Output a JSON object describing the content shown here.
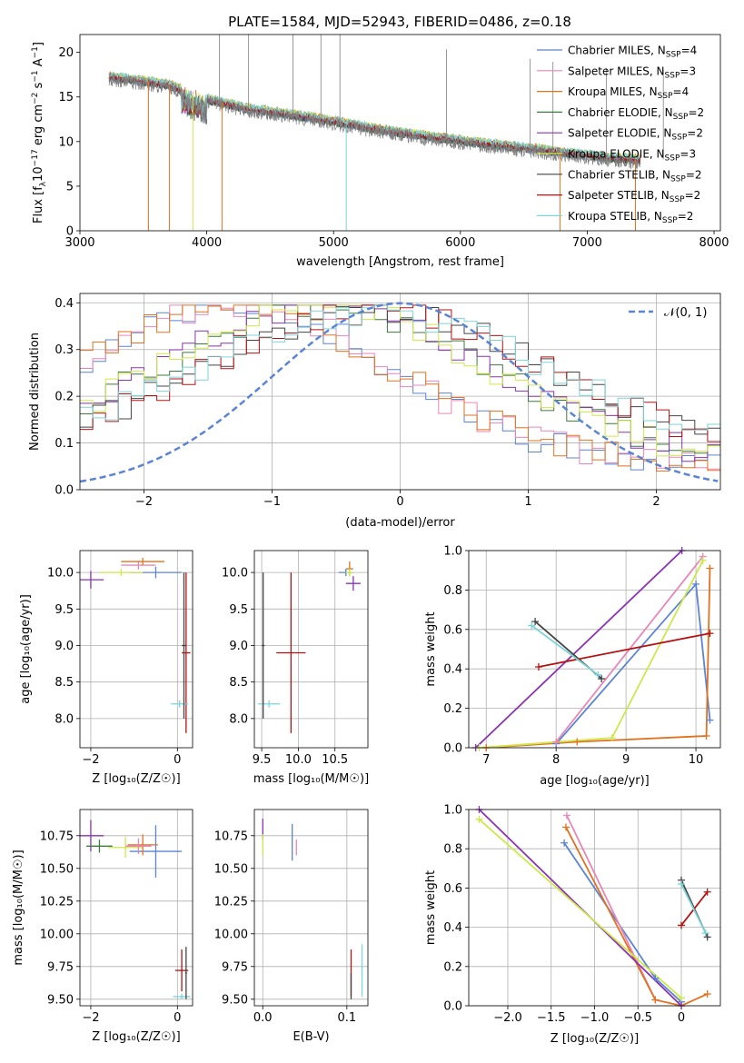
{
  "title": "PLATE=1584, MJD=52943, FIBERID=0486, z=0.18",
  "colors": {
    "chabrier_miles": "#5b84d4",
    "salpeter_miles": "#e986b7",
    "kroupa_miles": "#e0721f",
    "chabrier_elodie": "#3d7a3d",
    "salpeter_elodie": "#8b33b0",
    "kroupa_elodie": "#cde84a",
    "chabrier_stelib": "#444444",
    "salpeter_stelib": "#b31313",
    "kroupa_stelib": "#7dd4d8",
    "data": "#808080"
  },
  "chart_data": [
    {
      "id": "spectrum",
      "type": "line",
      "xlabel": "wavelength [Angstrom, rest frame]",
      "ylabel_parts": [
        "Flux [f",
        "λ",
        "10",
        "−17",
        " erg cm",
        "−2",
        " s",
        "−1",
        " A",
        "−1",
        "]"
      ],
      "xlim": [
        3000,
        8050
      ],
      "ylim": [
        0,
        22
      ],
      "xticks": [
        3000,
        4000,
        5000,
        6000,
        7000,
        8000
      ],
      "yticks": [
        0,
        5,
        10,
        15,
        20
      ],
      "grid": false,
      "legend_position": "top-right",
      "series": [
        {
          "name": "Chabrier MILES, N",
          "sub": "SSP",
          "eq": "=4",
          "color_key": "chabrier_miles"
        },
        {
          "name": "Salpeter MILES, N",
          "sub": "SSP",
          "eq": "=3",
          "color_key": "salpeter_miles"
        },
        {
          "name": "Kroupa MILES, N",
          "sub": "SSP",
          "eq": "=4",
          "color_key": "kroupa_miles"
        },
        {
          "name": "Chabrier ELODIE, N",
          "sub": "SSP",
          "eq": "=2",
          "color_key": "chabrier_elodie"
        },
        {
          "name": "Salpeter ELODIE, N",
          "sub": "SSP",
          "eq": "=2",
          "color_key": "salpeter_elodie"
        },
        {
          "name": "Kroupa ELODIE, N",
          "sub": "SSP",
          "eq": "=3",
          "color_key": "kroupa_elodie"
        },
        {
          "name": "Chabrier STELIB, N",
          "sub": "SSP",
          "eq": "=2",
          "color_key": "chabrier_stelib"
        },
        {
          "name": "Salpeter STELIB, N",
          "sub": "SSP",
          "eq": "=2",
          "color_key": "salpeter_stelib"
        },
        {
          "name": "Kroupa STELIB, N",
          "sub": "SSP",
          "eq": "=2",
          "color_key": "kroupa_stelib"
        }
      ],
      "continuum": {
        "x": [
          3230,
          3500,
          3700,
          4000,
          4300,
          4600,
          5000,
          5400,
          5800,
          6200,
          6600,
          6800,
          7000,
          7200,
          7400
        ],
        "y": [
          17.3,
          16.8,
          16.4,
          14.8,
          13.8,
          13.2,
          12.3,
          11.3,
          10.5,
          9.8,
          9.2,
          8.8,
          8.5,
          8.2,
          8.0
        ]
      },
      "absorption_dips": [
        {
          "x": 3540,
          "color_key": "kroupa_miles"
        },
        {
          "x": 3705,
          "color_key": "kroupa_miles"
        },
        {
          "x": 3890,
          "color_key": "kroupa_elodie"
        },
        {
          "x": 4120,
          "color_key": "kroupa_miles"
        },
        {
          "x": 5100,
          "color_key": "kroupa_stelib"
        },
        {
          "x": 6785,
          "color_key": "kroupa_miles"
        },
        {
          "x": 7380,
          "color_key": "kroupa_miles"
        }
      ],
      "spikes": [
        4100,
        4330,
        4680,
        4900,
        5050,
        5890,
        6550,
        6730,
        7150,
        7600
      ]
    },
    {
      "id": "residuals",
      "type": "line",
      "xlabel": "(data-model)/error",
      "ylabel": "Normed distribution",
      "xlim": [
        -2.5,
        2.5
      ],
      "ylim": [
        0,
        0.42
      ],
      "xticks": [
        -2,
        -1,
        0,
        1,
        2
      ],
      "yticks": [
        0.0,
        0.1,
        0.2,
        0.3,
        0.4
      ],
      "grid": true,
      "legend_position": "top-right",
      "gaussian_label": "𝒩(0, 1)",
      "gaussian_color_key": "chabrier_miles",
      "hist_groups": [
        {
          "color_keys": [
            "chabrier_miles",
            "salpeter_miles",
            "kroupa_miles"
          ],
          "peak": -1.3,
          "height": 0.34,
          "width": 1.2
        },
        {
          "color_keys": [
            "chabrier_elodie",
            "salpeter_elodie",
            "kroupa_elodie"
          ],
          "peak": -0.6,
          "height": 0.33,
          "width": 1.3
        },
        {
          "color_keys": [
            "chabrier_stelib",
            "salpeter_stelib",
            "kroupa_stelib"
          ],
          "peak": -0.2,
          "height": 0.32,
          "width": 1.4
        }
      ]
    },
    {
      "id": "age_vs_Z",
      "type": "scatter",
      "xlabel": "Z [log₁₀(Z/Z☉)]",
      "ylabel": "age  [log₁₀(age/yr)]",
      "xlim": [
        -2.25,
        0.35
      ],
      "ylim": [
        7.6,
        10.3
      ],
      "xticks": [
        -2,
        0
      ],
      "yticks": [
        8.0,
        8.5,
        9.0,
        9.5,
        10.0
      ],
      "grid": true,
      "points": [
        {
          "color_key": "chabrier_miles",
          "x": -0.5,
          "y": 10.0,
          "xerr": 0.6,
          "yerr": 0.08
        },
        {
          "color_key": "salpeter_miles",
          "x": -0.9,
          "y": 10.1,
          "xerr": 0.4,
          "yerr": 0.06
        },
        {
          "color_key": "kroupa_miles",
          "x": -0.8,
          "y": 10.15,
          "xerr": 0.5,
          "yerr": 0.05
        },
        {
          "color_key": "salpeter_elodie",
          "x": -2.0,
          "y": 9.9,
          "xerr": 0.3,
          "yerr": 0.12
        },
        {
          "color_key": "kroupa_elodie",
          "x": -1.3,
          "y": 10.0,
          "xerr": 0.5,
          "yerr": 0.05
        },
        {
          "color_key": "salpeter_stelib",
          "x": 0.2,
          "y": 8.9,
          "xerr": 0.1,
          "yerr": 1.1
        },
        {
          "color_key": "kroupa_stelib",
          "x": 0.05,
          "y": 8.2,
          "xerr": 0.2,
          "yerr": 0.05
        },
        {
          "color_key": "chabrier_stelib",
          "x": 0.15,
          "y": 9.0,
          "xerr": 0.05,
          "yerr": 1.0
        }
      ]
    },
    {
      "id": "age_vs_mass",
      "type": "scatter",
      "xlabel": "mass [log₁₀(M/M☉)]",
      "xlim": [
        9.4,
        10.95
      ],
      "ylim": [
        7.6,
        10.3
      ],
      "xticks": [
        9.5,
        10.0,
        10.5
      ],
      "yticks": [
        8.0,
        8.5,
        9.0,
        9.5,
        10.0
      ],
      "grid": true,
      "points": [
        {
          "color_key": "salpeter_stelib",
          "x": 9.9,
          "y": 8.9,
          "xerr": 0.2,
          "yerr": 1.1
        },
        {
          "color_key": "kroupa_stelib",
          "x": 9.6,
          "y": 8.2,
          "xerr": 0.15,
          "yerr": 0.05
        },
        {
          "color_key": "chabrier_stelib",
          "x": 9.52,
          "y": 9.0,
          "xerr": 0.02,
          "yerr": 1.0
        },
        {
          "color_key": "kroupa_miles",
          "x": 10.7,
          "y": 10.05,
          "xerr": 0.05,
          "yerr": 0.1
        },
        {
          "color_key": "salpeter_elodie",
          "x": 10.75,
          "y": 9.85,
          "xerr": 0.1,
          "yerr": 0.1
        },
        {
          "color_key": "chabrier_miles",
          "x": 10.65,
          "y": 10.0,
          "xerr": 0.1,
          "yerr": 0.05
        },
        {
          "color_key": "kroupa_elodie",
          "x": 10.7,
          "y": 10.0,
          "xerr": 0.05,
          "yerr": 0.05
        }
      ]
    },
    {
      "id": "massweight_vs_age",
      "type": "line",
      "xlabel": "age  [log₁₀(age/yr)]",
      "ylabel": "mass weight",
      "xlim": [
        6.75,
        10.35
      ],
      "ylim": [
        0,
        1
      ],
      "xticks": [
        7,
        8,
        9,
        10
      ],
      "yticks": [
        0.0,
        0.2,
        0.4,
        0.6,
        0.8,
        1.0
      ],
      "grid": true,
      "series": [
        {
          "color_key": "chabrier_miles",
          "x": [
            8.0,
            10.0,
            10.2
          ],
          "y": [
            0.02,
            0.83,
            0.14
          ]
        },
        {
          "color_key": "salpeter_miles",
          "x": [
            8.0,
            10.1
          ],
          "y": [
            0.03,
            0.97
          ]
        },
        {
          "color_key": "kroupa_miles",
          "x": [
            7.0,
            8.3,
            10.15,
            10.2
          ],
          "y": [
            0.0,
            0.03,
            0.06,
            0.91
          ]
        },
        {
          "color_key": "salpeter_elodie",
          "x": [
            6.85,
            9.8
          ],
          "y": [
            0.0,
            1.0
          ]
        },
        {
          "color_key": "kroupa_elodie",
          "x": [
            6.9,
            8.8,
            10.1
          ],
          "y": [
            0.0,
            0.05,
            0.95
          ]
        },
        {
          "color_key": "chabrier_stelib",
          "x": [
            7.7,
            8.65
          ],
          "y": [
            0.64,
            0.35
          ]
        },
        {
          "color_key": "salpeter_stelib",
          "x": [
            7.75,
            10.2
          ],
          "y": [
            0.41,
            0.58
          ]
        },
        {
          "color_key": "kroupa_stelib",
          "x": [
            7.65,
            8.6
          ],
          "y": [
            0.62,
            0.37
          ]
        }
      ]
    },
    {
      "id": "mass_vs_Z",
      "type": "scatter",
      "xlabel": "Z [log₁₀(Z/Z☉)]",
      "ylabel": "mass [log₁₀(M/M☉)]",
      "xlim": [
        -2.25,
        0.35
      ],
      "ylim": [
        9.45,
        10.95
      ],
      "xticks": [
        -2,
        0
      ],
      "yticks": [
        9.5,
        9.75,
        10.0,
        10.25,
        10.5,
        10.75
      ],
      "grid": true,
      "points": [
        {
          "color_key": "salpeter_elodie",
          "x": -2.0,
          "y": 10.75,
          "xerr": 0.3,
          "yerr": 0.12
        },
        {
          "color_key": "chabrier_elodie",
          "x": -1.8,
          "y": 10.67,
          "xerr": 0.3,
          "yerr": 0.05
        },
        {
          "color_key": "kroupa_elodie",
          "x": -1.2,
          "y": 10.66,
          "xerr": 0.4,
          "yerr": 0.08
        },
        {
          "color_key": "chabrier_miles",
          "x": -0.5,
          "y": 10.63,
          "xerr": 0.6,
          "yerr": 0.2
        },
        {
          "color_key": "kroupa_miles",
          "x": -0.8,
          "y": 10.68,
          "xerr": 0.35,
          "yerr": 0.08
        },
        {
          "color_key": "salpeter_miles",
          "x": -0.9,
          "y": 10.67,
          "xerr": 0.3,
          "yerr": 0.06
        },
        {
          "color_key": "salpeter_stelib",
          "x": 0.1,
          "y": 9.72,
          "xerr": 0.15,
          "yerr": 0.16
        },
        {
          "color_key": "kroupa_stelib",
          "x": 0.1,
          "y": 9.52,
          "xerr": 0.2,
          "yerr": 0.02
        },
        {
          "color_key": "chabrier_stelib",
          "x": 0.2,
          "y": 9.7,
          "xerr": 0.02,
          "yerr": 0.2
        }
      ]
    },
    {
      "id": "mass_vs_ebv",
      "type": "scatter",
      "xlabel": "E(B-V)",
      "xlim": [
        -0.01,
        0.125
      ],
      "ylim": [
        9.45,
        10.95
      ],
      "xticks": [
        0.0,
        0.1
      ],
      "yticks": [
        9.5,
        9.75,
        10.0,
        10.25,
        10.5,
        10.75
      ],
      "grid": true,
      "points": [
        {
          "color_key": "salpeter_elodie",
          "x": 0.0,
          "y": 10.8,
          "xerr": 0.0,
          "yerr": 0.08
        },
        {
          "color_key": "kroupa_elodie",
          "x": 0.0,
          "y": 10.68,
          "xerr": 0.0,
          "yerr": 0.08
        },
        {
          "color_key": "chabrier_miles",
          "x": 0.035,
          "y": 10.7,
          "xerr": 0.0,
          "yerr": 0.14
        },
        {
          "color_key": "salpeter_miles",
          "x": 0.04,
          "y": 10.66,
          "xerr": 0.0,
          "yerr": 0.06
        },
        {
          "color_key": "salpeter_stelib",
          "x": 0.105,
          "y": 9.7,
          "xerr": 0.0,
          "yerr": 0.18
        },
        {
          "color_key": "kroupa_stelib",
          "x": 0.118,
          "y": 9.72,
          "xerr": 0.0,
          "yerr": 0.2
        },
        {
          "color_key": "chabrier_stelib",
          "x": 0.105,
          "y": 9.6,
          "xerr": 0.0,
          "yerr": 0.1
        }
      ]
    },
    {
      "id": "massweight_vs_Z",
      "type": "line",
      "xlabel": "Z [log₁₀(Z/Z☉)]",
      "ylabel": "mass weight",
      "xlim": [
        -2.45,
        0.45
      ],
      "ylim": [
        0,
        1
      ],
      "xticks": [
        -2.0,
        -1.5,
        -1.0,
        -0.5,
        0.0
      ],
      "yticks": [
        0.0,
        0.2,
        0.4,
        0.6,
        0.8,
        1.0
      ],
      "grid": true,
      "series": [
        {
          "color_key": "chabrier_miles",
          "x": [
            -1.35,
            -0.3,
            0.0
          ],
          "y": [
            0.83,
            0.14,
            0.02
          ]
        },
        {
          "color_key": "salpeter_miles",
          "x": [
            -1.32,
            -0.3
          ],
          "y": [
            0.97,
            0.03
          ]
        },
        {
          "color_key": "kroupa_miles",
          "x": [
            -1.33,
            -0.3,
            0.0,
            0.3
          ],
          "y": [
            0.91,
            0.03,
            0.0,
            0.06
          ]
        },
        {
          "color_key": "salpeter_elodie",
          "x": [
            -2.33,
            0.0
          ],
          "y": [
            1.0,
            0.0
          ]
        },
        {
          "color_key": "kroupa_elodie",
          "x": [
            -2.33,
            0.0
          ],
          "y": [
            0.95,
            0.04
          ]
        },
        {
          "color_key": "chabrier_stelib",
          "x": [
            0.0,
            0.3
          ],
          "y": [
            0.64,
            0.35
          ]
        },
        {
          "color_key": "salpeter_stelib",
          "x": [
            0.0,
            0.3
          ],
          "y": [
            0.41,
            0.58
          ]
        },
        {
          "color_key": "kroupa_stelib",
          "x": [
            0.0,
            0.28
          ],
          "y": [
            0.62,
            0.37
          ]
        }
      ]
    }
  ]
}
